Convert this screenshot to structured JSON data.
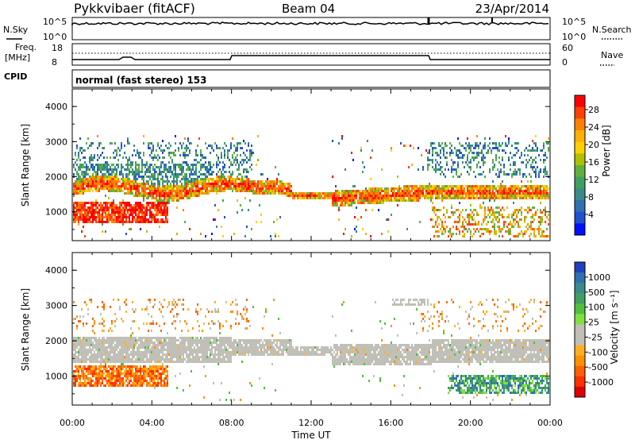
{
  "header": {
    "station": "Pykkvibaer (fitACF)",
    "beam": "Beam 04",
    "date": "23/Apr/2014"
  },
  "panels": {
    "nsky": {
      "label": "N.Sky",
      "ticks": [
        "10^5",
        "10^0"
      ]
    },
    "nsearch": {
      "label": "N.Search",
      "ticks": [
        "10^5",
        "10^0"
      ]
    },
    "freq": {
      "label_line1": "Freq.",
      "label_line2": "[MHz]",
      "ticks": [
        "18",
        "8"
      ]
    },
    "nave": {
      "label": "Nave",
      "ticks": [
        "60",
        "0"
      ]
    },
    "cpid": {
      "label": "CPID",
      "text": "normal (fast stereo) 153"
    }
  },
  "colorbars": {
    "power": {
      "label": "Power [dB]",
      "ticks": [
        "28",
        "24",
        "20",
        "16",
        "12",
        "8",
        "4"
      ],
      "colors": [
        "#ff0000",
        "#ff4000",
        "#ff8000",
        "#ffb000",
        "#ffd000",
        "#b0c000",
        "#60b040",
        "#40a060",
        "#3a8a88",
        "#3070b0",
        "#2050d0",
        "#0010ff"
      ]
    },
    "velocity": {
      "label": "Velocity [m s⁻¹]",
      "ticks": [
        "1000",
        "500",
        "100",
        "25",
        "-25",
        "-100",
        "-500",
        "-1000"
      ],
      "colors": [
        "#2040c0",
        "#3070b0",
        "#3b8a8a",
        "#40a060",
        "#50c040",
        "#80e040",
        "#c0c0b8",
        "#c0c0b8",
        "#ffb020",
        "#ff9000",
        "#ff6000",
        "#ff3000",
        "#e00000"
      ]
    }
  },
  "chart_data": [
    {
      "type": "heatmap",
      "name": "power",
      "ylabel": "Slant Range [km]",
      "xlabel": "Time UT",
      "xticks": [
        "00:00",
        "04:00",
        "08:00",
        "12:00",
        "16:00",
        "20:00",
        "00:00"
      ],
      "yticks": [
        "1000",
        "2000",
        "3000",
        "4000"
      ],
      "ylim": [
        180,
        4500
      ],
      "xlim_hours": [
        0,
        24
      ]
    },
    {
      "type": "heatmap",
      "name": "velocity",
      "ylabel": "Slant Range [km]",
      "xlabel": "Time UT",
      "xticks": [
        "00:00",
        "04:00",
        "08:00",
        "12:00",
        "16:00",
        "20:00",
        "00:00"
      ],
      "yticks": [
        "1000",
        "2000",
        "3000",
        "4000"
      ],
      "ylim": [
        180,
        4500
      ],
      "xlim_hours": [
        0,
        24
      ]
    }
  ]
}
